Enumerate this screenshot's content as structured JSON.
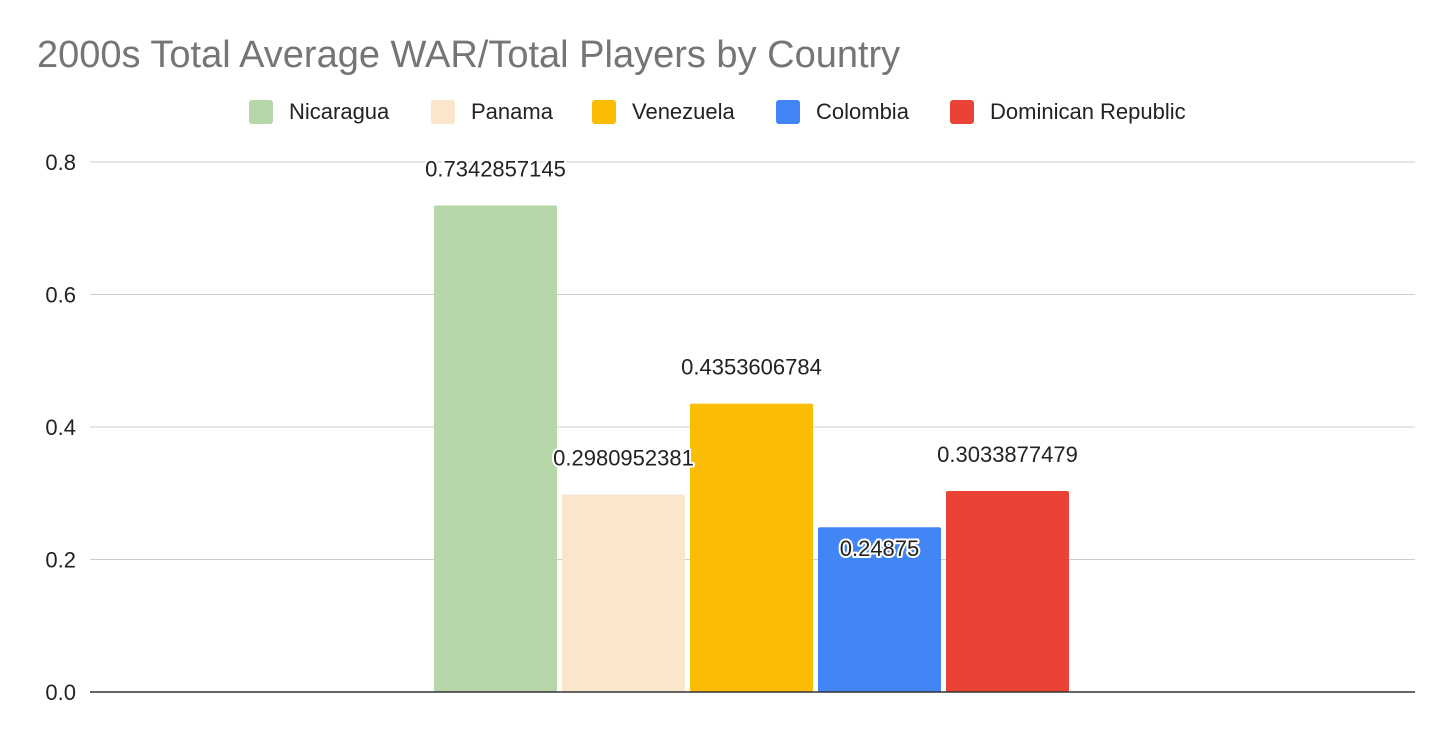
{
  "chart_data": {
    "type": "bar",
    "title": "2000s Total Average WAR/Total Players by Country",
    "xlabel": "",
    "ylabel": "",
    "ylim": [
      0,
      0.8
    ],
    "yticks": [
      "0.0",
      "0.2",
      "0.4",
      "0.6",
      "0.8"
    ],
    "grid": true,
    "legend_position": "top",
    "series": [
      {
        "name": "Nicaragua",
        "value": 0.7342857145,
        "label": "0.7342857145",
        "color": "#b6d7a8"
      },
      {
        "name": "Panama",
        "value": 0.2980952381,
        "label": "0.2980952381",
        "color": "#fce5cd"
      },
      {
        "name": "Venezuela",
        "value": 0.4353606784,
        "label": "0.4353606784",
        "color": "#fbbc04"
      },
      {
        "name": "Colombia",
        "value": 0.24875,
        "label": "0.24875",
        "color": "#4285f4"
      },
      {
        "name": "Dominican Republic",
        "value": 0.3033877479,
        "label": "0.3033877479",
        "color": "#ea4335"
      }
    ],
    "gridline_color": "#cccccc",
    "baseline_color": "#333333"
  }
}
